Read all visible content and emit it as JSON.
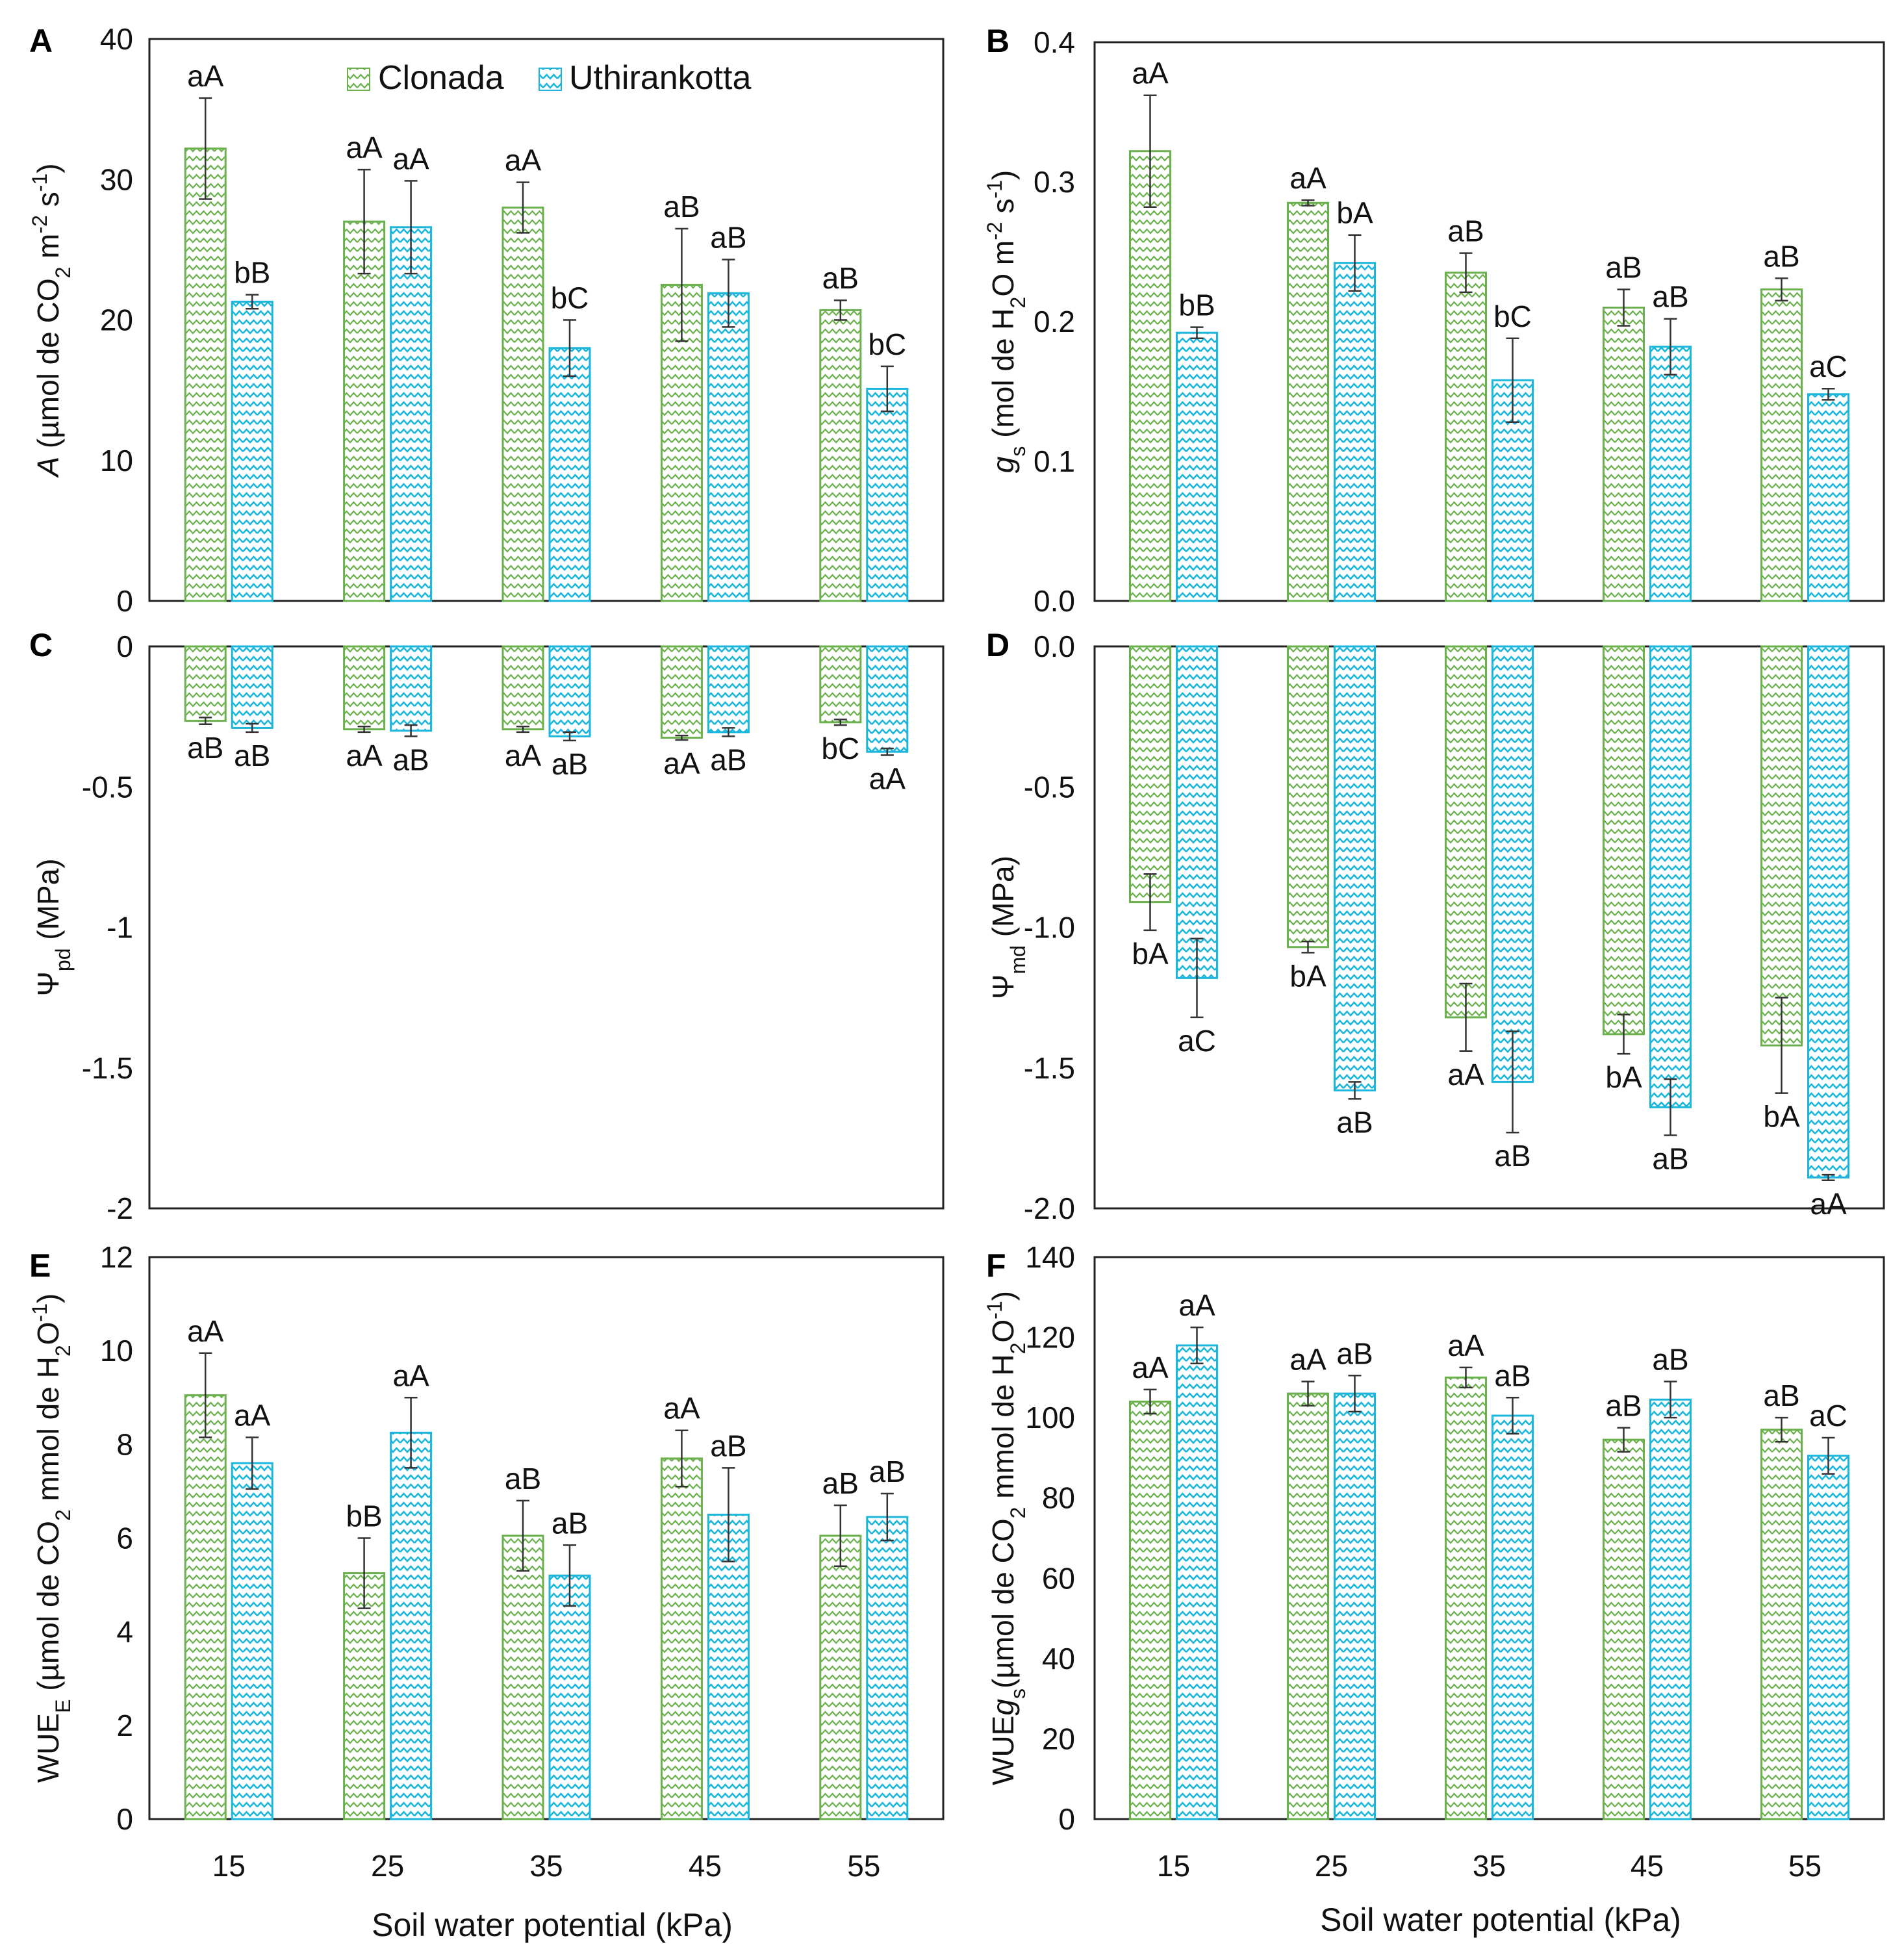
{
  "colors": {
    "clonada": "#6ab04c",
    "uthirankotta": "#1ab6dc",
    "error_bar": "#333333"
  },
  "legend": {
    "clonada": "Clonada",
    "uthirankotta": "Uthirankotta",
    "clonada_icon": "zigzag-hatch-green",
    "uthirankotta_icon": "zigzag-hatch-cyan"
  },
  "x_axis_title": "Soil water potential (kPa)",
  "chart_data": [
    {
      "id": "A",
      "panel_label": "A",
      "type": "bar",
      "ylabel": {
        "pre": "",
        "ital": "A",
        "sub": "",
        "mid": " (µmol de CO",
        "sub2": "2",
        "mid2": " m",
        "sup": "-2",
        "post": " s",
        "sup2": "-1",
        "end": ")"
      },
      "ylim": [
        0,
        40
      ],
      "ytick_labels": [
        "0",
        "10",
        "20",
        "30",
        "40"
      ],
      "categories": [
        "15",
        "25",
        "35",
        "45",
        "55"
      ],
      "series": [
        {
          "name": "Clonada",
          "values": [
            32.2,
            27.0,
            28.0,
            22.5,
            20.7
          ],
          "errors": [
            3.6,
            3.7,
            1.8,
            4.0,
            0.7
          ],
          "letters": [
            "aA",
            "aA",
            "aA",
            "aB",
            "aB"
          ]
        },
        {
          "name": "Uthirankotta",
          "values": [
            21.3,
            26.6,
            18.0,
            21.9,
            15.1
          ],
          "errors": [
            0.5,
            3.3,
            2.0,
            2.4,
            1.6
          ],
          "letters": [
            "bB",
            "aA",
            "bC",
            "aB",
            "bC"
          ]
        }
      ]
    },
    {
      "id": "B",
      "panel_label": "B",
      "type": "bar",
      "ylabel": {
        "pre": "",
        "ital": "g",
        "sub": "s",
        "mid": " (mol de H",
        "sub2": "2",
        "mid2": "O m",
        "sup": "-2",
        "post": " s",
        "sup2": "-1",
        "end": ")"
      },
      "ylim": [
        0.0,
        0.4
      ],
      "ytick_labels": [
        "0.0",
        "0.1",
        "0.2",
        "0.3",
        "0.4"
      ],
      "categories": [
        "15",
        "25",
        "35",
        "45",
        "55"
      ],
      "series": [
        {
          "name": "Clonada",
          "values": [
            0.322,
            0.285,
            0.235,
            0.21,
            0.223
          ],
          "errors": [
            0.04,
            0.002,
            0.014,
            0.013,
            0.008
          ],
          "letters": [
            "aA",
            "aA",
            "aB",
            "aB",
            "aB"
          ]
        },
        {
          "name": "Uthirankotta",
          "values": [
            0.192,
            0.242,
            0.158,
            0.182,
            0.148
          ],
          "errors": [
            0.004,
            0.02,
            0.03,
            0.02,
            0.004
          ],
          "letters": [
            "bB",
            "bA",
            "bC",
            "aB",
            "aC"
          ]
        }
      ]
    },
    {
      "id": "C",
      "panel_label": "C",
      "type": "bar",
      "ylabel": {
        "pre": "Ψ",
        "ital": "",
        "sub": "pd",
        "mid": " (MPa)",
        "sub2": "",
        "mid2": "",
        "sup": "",
        "post": "",
        "sup2": "",
        "end": ""
      },
      "ylim": [
        -2,
        0
      ],
      "ytick_labels": [
        "-2",
        "-1.5",
        "-1",
        "-0.5",
        "0"
      ],
      "categories": [
        "15",
        "25",
        "35",
        "45",
        "55"
      ],
      "series": [
        {
          "name": "Clonada",
          "values": [
            -0.265,
            -0.295,
            -0.295,
            -0.325,
            -0.27
          ],
          "errors": [
            0.012,
            0.01,
            0.01,
            0.008,
            0.01
          ],
          "letters": [
            "aB",
            "aA",
            "aA",
            "aA",
            "bC"
          ]
        },
        {
          "name": "Uthirankotta",
          "values": [
            -0.29,
            -0.3,
            -0.32,
            -0.305,
            -0.375
          ],
          "errors": [
            0.015,
            0.02,
            0.015,
            0.015,
            0.012
          ],
          "letters": [
            "aB",
            "aB",
            "aB",
            "aB",
            "aA"
          ]
        }
      ]
    },
    {
      "id": "D",
      "panel_label": "D",
      "type": "bar",
      "ylabel": {
        "pre": "Ψ",
        "ital": "",
        "sub": "md",
        "mid": " (MPa)",
        "sub2": "",
        "mid2": "",
        "sup": "",
        "post": "",
        "sup2": "",
        "end": ""
      },
      "ylim": [
        -2.0,
        0.0
      ],
      "ytick_labels": [
        "-2.0",
        "-1.5",
        "-1.0",
        "-0.5",
        "0.0"
      ],
      "categories": [
        "15",
        "25",
        "35",
        "45",
        "55"
      ],
      "series": [
        {
          "name": "Clonada",
          "values": [
            -0.91,
            -1.07,
            -1.32,
            -1.38,
            -1.42
          ],
          "errors": [
            0.1,
            0.02,
            0.12,
            0.07,
            0.17
          ],
          "letters": [
            "bA",
            "bA",
            "aA",
            "bA",
            "bA"
          ]
        },
        {
          "name": "Uthirankotta",
          "values": [
            -1.18,
            -1.58,
            -1.55,
            -1.64,
            -1.89
          ],
          "errors": [
            0.14,
            0.03,
            0.18,
            0.1,
            0.01
          ],
          "letters": [
            "aC",
            "aB",
            "aB",
            "aB",
            "aA"
          ]
        }
      ]
    },
    {
      "id": "E",
      "panel_label": "E",
      "type": "bar",
      "ylabel": {
        "pre": "WUE",
        "ital": "",
        "sub": "E",
        "mid": " (µmol de CO",
        "sub2": "2",
        "mid2": " mmol de H",
        "sup": "",
        "post": "",
        "sup2": "",
        "end": "",
        "sub3": "2",
        "tail": "O",
        "sup3": "-1",
        "close": ")"
      },
      "ylim": [
        0,
        12
      ],
      "ytick_labels": [
        "0",
        "2",
        "4",
        "6",
        "8",
        "10",
        "12"
      ],
      "categories": [
        "15",
        "25",
        "35",
        "45",
        "55"
      ],
      "series": [
        {
          "name": "Clonada",
          "values": [
            9.05,
            5.25,
            6.05,
            7.7,
            6.05
          ],
          "errors": [
            0.9,
            0.75,
            0.75,
            0.6,
            0.65
          ],
          "letters": [
            "aA",
            "bB",
            "aB",
            "aA",
            "aB"
          ]
        },
        {
          "name": "Uthirankotta",
          "values": [
            7.6,
            8.25,
            5.2,
            6.5,
            6.45
          ],
          "errors": [
            0.55,
            0.75,
            0.65,
            1.0,
            0.5
          ],
          "letters": [
            "aA",
            "aA",
            "aB",
            "aB",
            "aB"
          ]
        }
      ]
    },
    {
      "id": "F",
      "panel_label": "F",
      "type": "bar",
      "ylabel": {
        "pre": "WUE",
        "ital": "g",
        "sub": "s",
        "mid": "(µmol de CO",
        "sub2": "2",
        "mid2": " mmol de H",
        "sup": "",
        "post": "",
        "sup2": "",
        "end": "",
        "sub3": "2",
        "tail": "O",
        "sup3": "-1",
        "close": ")"
      },
      "ylim": [
        0,
        140
      ],
      "ytick_labels": [
        "0",
        "20",
        "40",
        "60",
        "80",
        "100",
        "120",
        "140"
      ],
      "categories": [
        "15",
        "25",
        "35",
        "45",
        "55"
      ],
      "series": [
        {
          "name": "Clonada",
          "values": [
            104,
            106,
            110,
            94.5,
            97
          ],
          "errors": [
            3,
            3,
            2.5,
            3,
            3
          ],
          "letters": [
            "aA",
            "aA",
            "aA",
            "aB",
            "aB"
          ]
        },
        {
          "name": "Uthirankotta",
          "values": [
            118,
            106,
            100.5,
            104.5,
            90.5
          ],
          "errors": [
            4.5,
            4.5,
            4.5,
            4.5,
            4.5
          ],
          "letters": [
            "aA",
            "aB",
            "aB",
            "aB",
            "aC"
          ]
        }
      ]
    }
  ]
}
